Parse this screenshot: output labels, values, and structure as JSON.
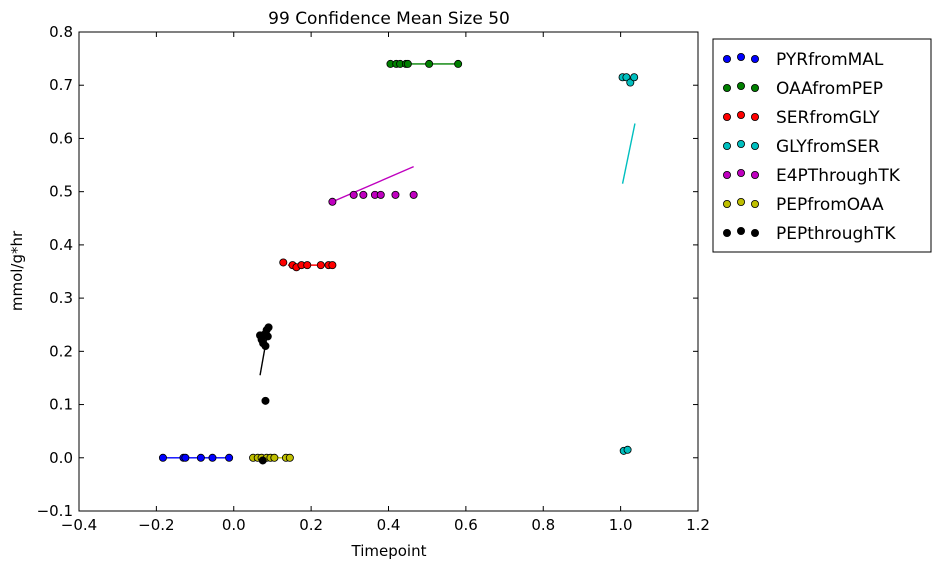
{
  "chart_data": {
    "type": "scatter",
    "title": "99 Confidence Mean Size 50",
    "xlabel": "Timepoint",
    "ylabel": "mmol/g*hr",
    "xlim": [
      -0.4,
      1.2
    ],
    "ylim": [
      -0.1,
      0.8
    ],
    "xticks": [
      -0.4,
      -0.2,
      0.0,
      0.2,
      0.4,
      0.6,
      0.8,
      1.0,
      1.2
    ],
    "xtick_labels": [
      "−0.4",
      "−0.2",
      "0.0",
      "0.2",
      "0.4",
      "0.6",
      "0.8",
      "1.0",
      "1.2"
    ],
    "yticks": [
      -0.1,
      0.0,
      0.1,
      0.2,
      0.3,
      0.4,
      0.5,
      0.6,
      0.7,
      0.8
    ],
    "ytick_labels": [
      "−0.1",
      "0.0",
      "0.1",
      "0.2",
      "0.3",
      "0.4",
      "0.5",
      "0.6",
      "0.7",
      "0.8"
    ],
    "grid": false,
    "legend_position": "outside-right",
    "series": [
      {
        "name": "PYRfromMAL",
        "color": "#0000ff",
        "points": [
          [
            -0.183,
            0.0
          ],
          [
            -0.13,
            0.0
          ],
          [
            -0.125,
            0.0
          ],
          [
            -0.085,
            0.0
          ],
          [
            -0.055,
            0.0
          ],
          [
            -0.012,
            0.0
          ]
        ],
        "line": [
          [
            -0.19,
            0.0
          ],
          [
            -0.01,
            0.0
          ]
        ]
      },
      {
        "name": "OAAfromPEP",
        "color": "#008000",
        "points": [
          [
            0.405,
            0.74
          ],
          [
            0.42,
            0.74
          ],
          [
            0.43,
            0.74
          ],
          [
            0.445,
            0.74
          ],
          [
            0.45,
            0.74
          ],
          [
            0.505,
            0.74
          ],
          [
            0.58,
            0.74
          ]
        ],
        "line": [
          [
            0.405,
            0.74
          ],
          [
            0.58,
            0.74
          ]
        ]
      },
      {
        "name": "SERfromGLY",
        "color": "#ff0000",
        "points": [
          [
            0.128,
            0.367
          ],
          [
            0.152,
            0.362
          ],
          [
            0.162,
            0.358
          ],
          [
            0.175,
            0.362
          ],
          [
            0.19,
            0.362
          ],
          [
            0.225,
            0.362
          ],
          [
            0.245,
            0.362
          ],
          [
            0.255,
            0.362
          ]
        ],
        "line": [
          [
            0.14,
            0.362
          ],
          [
            0.26,
            0.362
          ]
        ]
      },
      {
        "name": "GLYfromSER",
        "color": "#00bfbf",
        "points": [
          [
            1.005,
            0.715
          ],
          [
            1.015,
            0.715
          ],
          [
            1.025,
            0.705
          ],
          [
            1.035,
            0.715
          ],
          [
            1.008,
            0.013
          ],
          [
            1.018,
            0.015
          ]
        ],
        "line": [
          [
            1.005,
            0.515
          ],
          [
            1.037,
            0.628
          ]
        ]
      },
      {
        "name": "E4PThroughTK",
        "color": "#bf00bf",
        "points": [
          [
            0.255,
            0.481
          ],
          [
            0.31,
            0.494
          ],
          [
            0.335,
            0.494
          ],
          [
            0.365,
            0.494
          ],
          [
            0.38,
            0.494
          ],
          [
            0.418,
            0.494
          ],
          [
            0.465,
            0.494
          ]
        ],
        "line": [
          [
            0.255,
            0.481
          ],
          [
            0.465,
            0.547
          ]
        ]
      },
      {
        "name": "PEPfromOAA",
        "color": "#bfbf00",
        "points": [
          [
            0.05,
            0.0
          ],
          [
            0.062,
            0.0
          ],
          [
            0.072,
            0.0
          ],
          [
            0.085,
            0.0
          ],
          [
            0.095,
            0.0
          ],
          [
            0.105,
            0.0
          ],
          [
            0.135,
            0.0
          ],
          [
            0.145,
            0.0
          ]
        ],
        "line": [
          [
            0.05,
            0.0
          ],
          [
            0.145,
            0.0
          ]
        ]
      },
      {
        "name": "PEPthroughTK",
        "color": "#000000",
        "points": [
          [
            0.068,
            0.23
          ],
          [
            0.072,
            0.222
          ],
          [
            0.076,
            0.215
          ],
          [
            0.08,
            0.232
          ],
          [
            0.082,
            0.21
          ],
          [
            0.085,
            0.24
          ],
          [
            0.088,
            0.228
          ],
          [
            0.09,
            0.245
          ],
          [
            0.075,
            -0.005
          ],
          [
            0.082,
            0.107
          ]
        ],
        "line": [
          [
            0.068,
            0.155
          ],
          [
            0.09,
            0.245
          ]
        ]
      }
    ]
  }
}
